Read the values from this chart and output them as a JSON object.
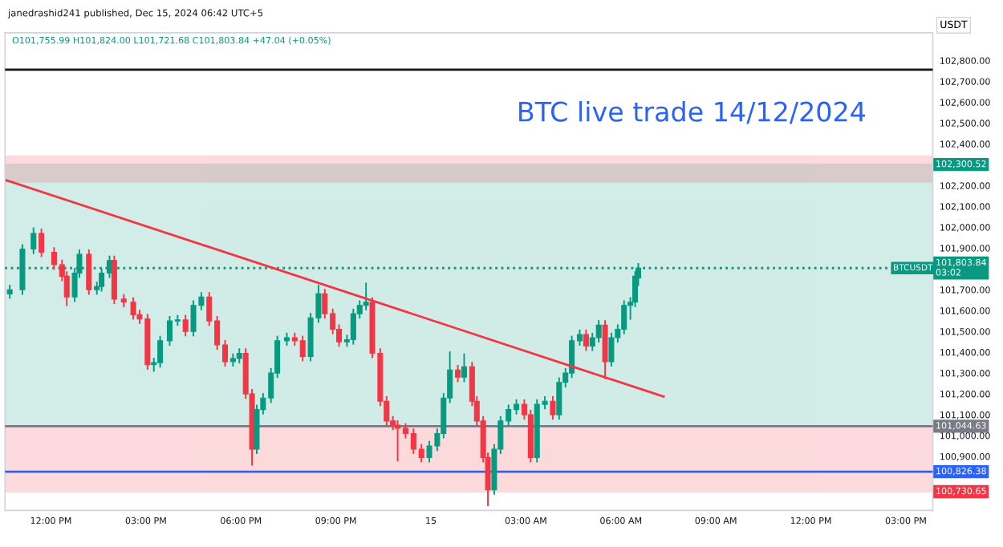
{
  "chart_data": {
    "type": "candlestick",
    "title": "BTC live trade 14/12/2024",
    "ylabel": "USDT",
    "annotations": [
      "janedrashid241 published, Dec 15, 2024 06:42 UTC+5",
      "O101,755.99 H101,824.00 L101,721.68 C101,803.84 +47.04 (+0.05%)",
      {
        "text": "BTCUSDT",
        "x": "2024-12-15T15:51",
        "y": 101803.84
      }
    ],
    "x": [
      "2024-12-14T10:42",
      "2024-12-14T11:06",
      "2024-12-14T11:27",
      "2024-12-14T11:42",
      "2024-12-14T12:06",
      "2024-12-14T12:21",
      "2024-12-14T12:30",
      "2024-12-14T12:45",
      "2024-12-14T12:54",
      "2024-12-14T13:12",
      "2024-12-14T13:27",
      "2024-12-14T13:36",
      "2024-12-14T13:51",
      "2024-12-14T14:00",
      "2024-12-14T14:18",
      "2024-12-14T14:36",
      "2024-12-14T14:48",
      "2024-12-14T15:03",
      "2024-12-14T15:15",
      "2024-12-14T15:27",
      "2024-12-14T15:45",
      "2024-12-14T16:00",
      "2024-12-14T16:15",
      "2024-12-14T16:30",
      "2024-12-14T16:45",
      "2024-12-14T17:00",
      "2024-12-14T17:15",
      "2024-12-14T17:30",
      "2024-12-14T17:45",
      "2024-12-14T17:57",
      "2024-12-14T18:09",
      "2024-12-14T18:21",
      "2024-12-14T18:30",
      "2024-12-14T18:42",
      "2024-12-14T18:57",
      "2024-12-14T19:09",
      "2024-12-14T19:27",
      "2024-12-14T19:42",
      "2024-12-14T19:57",
      "2024-12-14T20:12",
      "2024-12-14T20:27",
      "2024-12-14T20:39",
      "2024-12-14T20:54",
      "2024-12-14T21:06",
      "2024-12-14T21:21",
      "2024-12-14T21:33",
      "2024-12-14T21:45",
      "2024-12-14T21:57",
      "2024-12-14T22:09",
      "2024-12-14T22:24",
      "2024-12-14T22:36",
      "2024-12-14T22:48",
      "2024-12-14T22:57",
      "2024-12-14T23:12",
      "2024-12-14T23:27",
      "2024-12-14T23:42",
      "2024-12-14T23:57",
      "2024-12-15T00:12",
      "2024-12-15T00:24",
      "2024-12-15T00:36",
      "2024-12-15T00:51",
      "2024-12-15T01:03",
      "2024-12-15T01:18",
      "2024-12-15T01:27",
      "2024-12-15T01:39",
      "2024-12-15T01:48",
      "2024-12-15T02:00",
      "2024-12-15T02:12",
      "2024-12-15T02:27",
      "2024-12-15T02:42",
      "2024-12-15T02:57",
      "2024-12-15T03:09",
      "2024-12-15T03:21",
      "2024-12-15T03:36",
      "2024-12-15T03:51",
      "2024-12-15T04:03",
      "2024-12-15T04:15",
      "2024-12-15T04:27",
      "2024-12-15T04:42",
      "2024-12-15T04:54",
      "2024-12-15T05:06",
      "2024-12-15T05:18",
      "2024-12-15T05:30",
      "2024-12-15T05:42",
      "2024-12-15T05:54",
      "2024-12-15T06:06",
      "2024-12-15T06:18",
      "2024-12-15T06:27",
      "2024-12-15T06:33"
    ],
    "ohlc": [
      [
        101680,
        101720,
        101660,
        101700
      ],
      [
        101700,
        101915,
        101680,
        101895
      ],
      [
        101895,
        101995,
        101875,
        101970
      ],
      [
        101970,
        101990,
        101860,
        101880
      ],
      [
        101880,
        101900,
        101800,
        101820
      ],
      [
        101820,
        101840,
        101745,
        101765
      ],
      [
        101765,
        101785,
        101625,
        101665
      ],
      [
        101665,
        101800,
        101645,
        101780
      ],
      [
        101780,
        101890,
        101760,
        101870
      ],
      [
        101870,
        101890,
        101680,
        101700
      ],
      [
        101700,
        101735,
        101680,
        101715
      ],
      [
        101715,
        101800,
        101695,
        101780
      ],
      [
        101780,
        101860,
        101760,
        101840
      ],
      [
        101840,
        101860,
        101635,
        101655
      ],
      [
        101655,
        101675,
        101620,
        101640
      ],
      [
        101640,
        101660,
        101560,
        101580
      ],
      [
        101580,
        101600,
        101540,
        101560
      ],
      [
        101560,
        101580,
        101320,
        101340
      ],
      [
        101340,
        101370,
        101310,
        101350
      ],
      [
        101350,
        101475,
        101330,
        101455
      ],
      [
        101455,
        101570,
        101435,
        101550
      ],
      [
        101550,
        101575,
        101530,
        101555
      ],
      [
        101555,
        101575,
        101480,
        101500
      ],
      [
        101500,
        101645,
        101480,
        101625
      ],
      [
        101625,
        101685,
        101605,
        101665
      ],
      [
        101665,
        101685,
        101530,
        101550
      ],
      [
        101550,
        101570,
        101415,
        101435
      ],
      [
        101435,
        101455,
        101335,
        101355
      ],
      [
        101355,
        101390,
        101335,
        101370
      ],
      [
        101370,
        101415,
        101350,
        101395
      ],
      [
        101395,
        101415,
        101180,
        101200
      ],
      [
        101200,
        101220,
        100860,
        100935
      ],
      [
        100935,
        101145,
        100915,
        101125
      ],
      [
        101125,
        101200,
        101105,
        101180
      ],
      [
        101180,
        101320,
        101160,
        101300
      ],
      [
        101300,
        101475,
        101280,
        101455
      ],
      [
        101455,
        101490,
        101435,
        101470
      ],
      [
        101470,
        101490,
        101435,
        101455
      ],
      [
        101455,
        101475,
        101360,
        101380
      ],
      [
        101380,
        101585,
        101360,
        101565
      ],
      [
        101565,
        101720,
        101545,
        101680
      ],
      [
        101680,
        101700,
        101565,
        101585
      ],
      [
        101585,
        101605,
        101490,
        101510
      ],
      [
        101510,
        101530,
        101430,
        101450
      ],
      [
        101450,
        101480,
        101430,
        101460
      ],
      [
        101460,
        101605,
        101440,
        101585
      ],
      [
        101585,
        101645,
        101565,
        101625
      ],
      [
        101625,
        101730,
        101605,
        101640
      ],
      [
        101640,
        101660,
        101375,
        101395
      ],
      [
        101395,
        101415,
        101145,
        101165
      ],
      [
        101165,
        101185,
        101050,
        101070
      ],
      [
        101070,
        101090,
        101030,
        101050
      ],
      [
        101050,
        101070,
        100880,
        101035
      ],
      [
        101035,
        101055,
        100990,
        101010
      ],
      [
        101010,
        101030,
        100915,
        100935
      ],
      [
        100935,
        100955,
        100875,
        100895
      ],
      [
        100895,
        100970,
        100875,
        100950
      ],
      [
        100950,
        101030,
        100930,
        101010
      ],
      [
        101010,
        101200,
        100990,
        101180
      ],
      [
        101180,
        101400,
        101160,
        101315
      ],
      [
        101315,
        101335,
        101260,
        101280
      ],
      [
        101280,
        101390,
        101260,
        101330
      ],
      [
        101330,
        101350,
        101145,
        101165
      ],
      [
        101165,
        101185,
        101050,
        101070
      ],
      [
        101070,
        101090,
        100875,
        100895
      ],
      [
        100895,
        100915,
        100665,
        100740
      ],
      [
        100740,
        100955,
        100720,
        100935
      ],
      [
        100935,
        101090,
        100915,
        101070
      ],
      [
        101070,
        101145,
        101050,
        101125
      ],
      [
        101125,
        101170,
        101105,
        101150
      ],
      [
        101150,
        101170,
        101080,
        101100
      ],
      [
        101100,
        101120,
        100875,
        100895
      ],
      [
        100895,
        101170,
        100875,
        101150
      ],
      [
        101150,
        101185,
        101130,
        101165
      ],
      [
        101165,
        101185,
        101080,
        101100
      ],
      [
        101100,
        101275,
        101080,
        101255
      ],
      [
        101255,
        101320,
        101235,
        101300
      ],
      [
        101300,
        101475,
        101280,
        101455
      ],
      [
        101455,
        101505,
        101435,
        101485
      ],
      [
        101485,
        101505,
        101410,
        101430
      ],
      [
        101430,
        101490,
        101410,
        101470
      ],
      [
        101470,
        101550,
        101450,
        101530
      ],
      [
        101530,
        101550,
        101275,
        101355
      ],
      [
        101355,
        101490,
        101335,
        101470
      ],
      [
        101470,
        101530,
        101450,
        101510
      ],
      [
        101510,
        101645,
        101490,
        101625
      ],
      [
        101625,
        101660,
        101560,
        101640
      ],
      [
        101640,
        101785,
        101620,
        101765
      ],
      [
        101755.99,
        101824,
        101721.68,
        101803.84
      ]
    ],
    "series": [
      {
        "type": "line",
        "color": "#f23645",
        "x": [
          "2024-12-14T10:36",
          "2024-12-15T07:21"
        ],
        "values": [
          102225,
          101187
        ]
      }
    ],
    "bands": [
      {
        "axis": "y",
        "from": 101044.63,
        "to": 102300.52,
        "label": "102,300.52",
        "color": "#089981"
      },
      {
        "axis": "y",
        "from": 101044.63,
        "to": 100730.65,
        "label": "100,730.65",
        "color": "#f23645"
      },
      {
        "axis": "y",
        "from": 102218,
        "to": 102340,
        "color": "#f23645"
      }
    ],
    "ref_lines": [
      {
        "axis": "y",
        "value": 102756,
        "color": "#131722",
        "line_style": "solid"
      },
      {
        "axis": "y",
        "value": 101803.84,
        "label": "101,803.84\n03:02",
        "color": "#089981",
        "line_style": "dotted"
      },
      {
        "axis": "y",
        "value": 101044.63,
        "label": "101,044.63",
        "color": "#787b86",
        "line_style": "solid"
      },
      {
        "axis": "y",
        "value": 100826.38,
        "label": "100,826.38",
        "color": "#2962ff",
        "line_style": "solid"
      }
    ],
    "xlim": [
      "2024-12-14T10:33",
      "2024-12-15T15:51"
    ],
    "ylim": [
      100641,
      102933
    ],
    "xticks": [
      {
        "value": "2024-12-14T12:00",
        "label": "12:00 PM"
      },
      {
        "value": "2024-12-14T15:00",
        "label": "03:00 PM"
      },
      {
        "value": "2024-12-14T18:00",
        "label": "06:00 PM"
      },
      {
        "value": "2024-12-14T21:00",
        "label": "09:00 PM"
      },
      {
        "value": "2024-12-15",
        "label": "15"
      },
      {
        "value": "2024-12-15T03:00",
        "label": "03:00 AM"
      },
      {
        "value": "2024-12-15T06:00",
        "label": "06:00 AM"
      },
      {
        "value": "2024-12-15T09:00",
        "label": "09:00 AM"
      },
      {
        "value": "2024-12-15T12:00",
        "label": "12:00 PM"
      },
      {
        "value": "2024-12-15T15:00",
        "label": "03:00 PM"
      }
    ],
    "yticks": [
      {
        "value": 100900,
        "label": "100,900.00"
      },
      {
        "value": 101000,
        "label": "101,000.00"
      },
      {
        "value": 101100,
        "label": "101,100.00"
      },
      {
        "value": 101200,
        "label": "101,200.00"
      },
      {
        "value": 101300,
        "label": "101,300.00"
      },
      {
        "value": 101400,
        "label": "101,400.00"
      },
      {
        "value": 101500,
        "label": "101,500.00"
      },
      {
        "value": 101600,
        "label": "101,600.00"
      },
      {
        "value": 101700,
        "label": "101,700.00"
      },
      {
        "value": 101900,
        "label": "101,900.00"
      },
      {
        "value": 102000,
        "label": "102,000.00"
      },
      {
        "value": 102100,
        "label": "102,100.00"
      },
      {
        "value": 102200,
        "label": "102,200.00"
      },
      {
        "value": 102400,
        "label": "102,400.00"
      },
      {
        "value": 102500,
        "label": "102,500.00"
      },
      {
        "value": 102600,
        "label": "102,600.00"
      },
      {
        "value": 102700,
        "label": "102,700.00"
      },
      {
        "value": 102800,
        "label": "102,800.00"
      }
    ],
    "grid": false,
    "legend": false
  }
}
